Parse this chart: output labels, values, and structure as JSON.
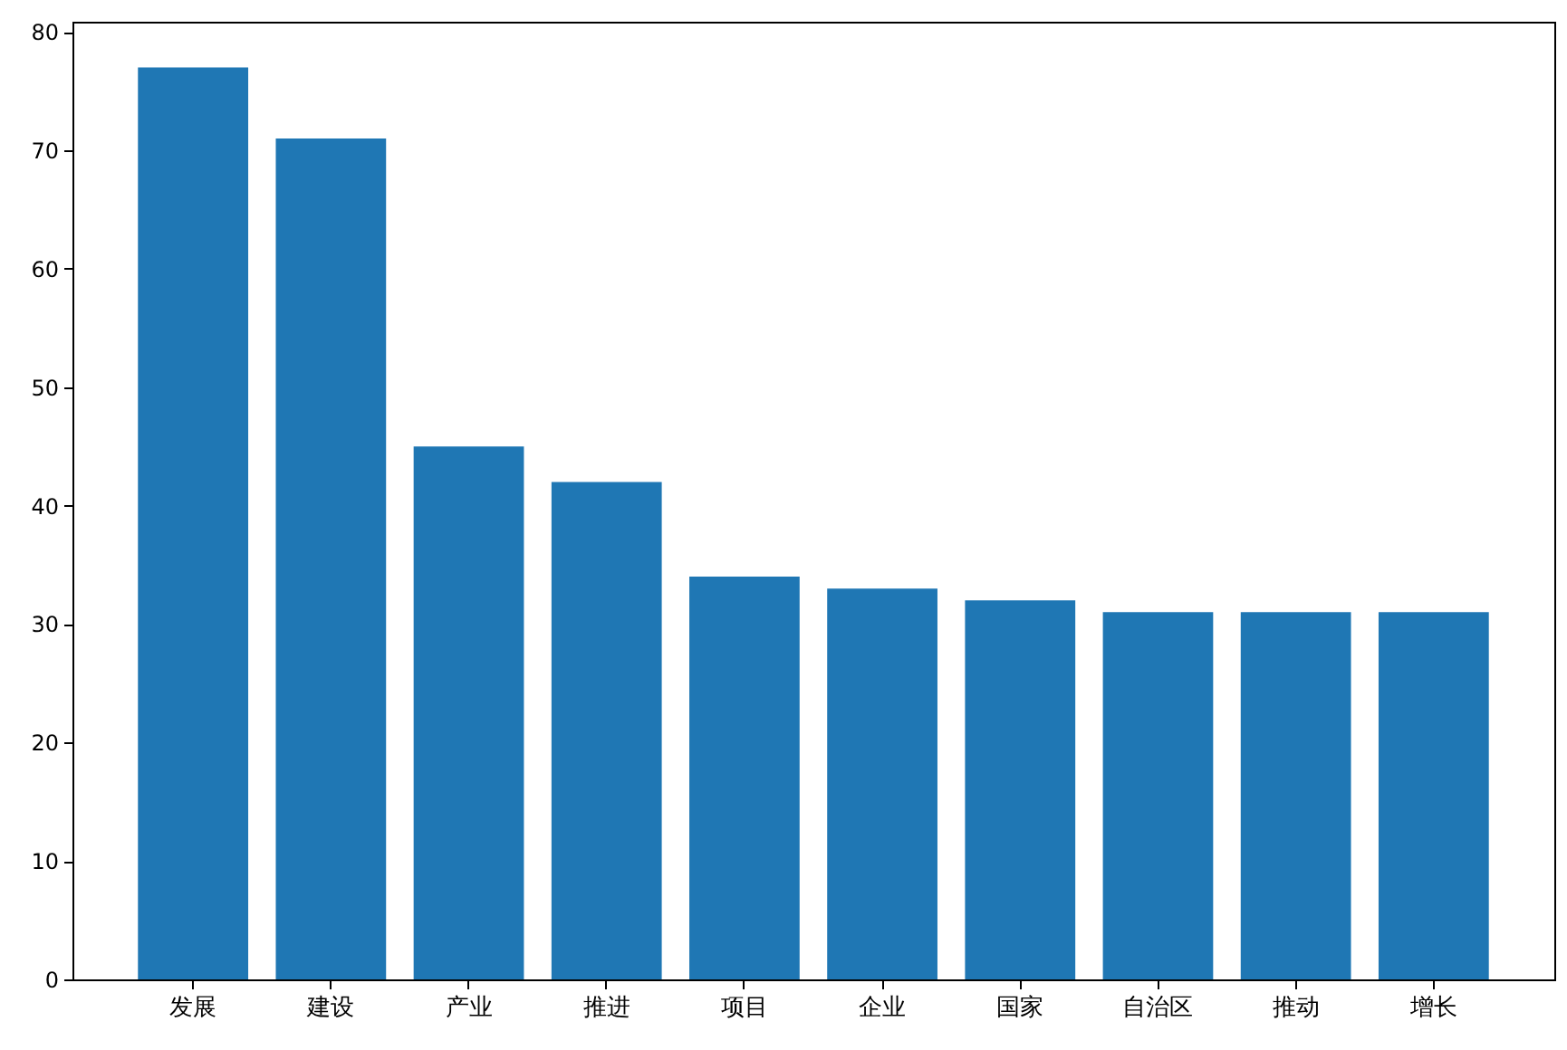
{
  "chart_data": {
    "type": "bar",
    "categories": [
      "发展",
      "建设",
      "产业",
      "推进",
      "项目",
      "企业",
      "国家",
      "自治区",
      "推动",
      "增长"
    ],
    "values": [
      77,
      71,
      45,
      42,
      34,
      33,
      32,
      31,
      31,
      31
    ],
    "color": "#1f77b4",
    "ylim": [
      0,
      80.85
    ],
    "yticks": [
      0,
      10,
      20,
      30,
      40,
      50,
      60,
      70,
      80
    ],
    "grid": false
  }
}
